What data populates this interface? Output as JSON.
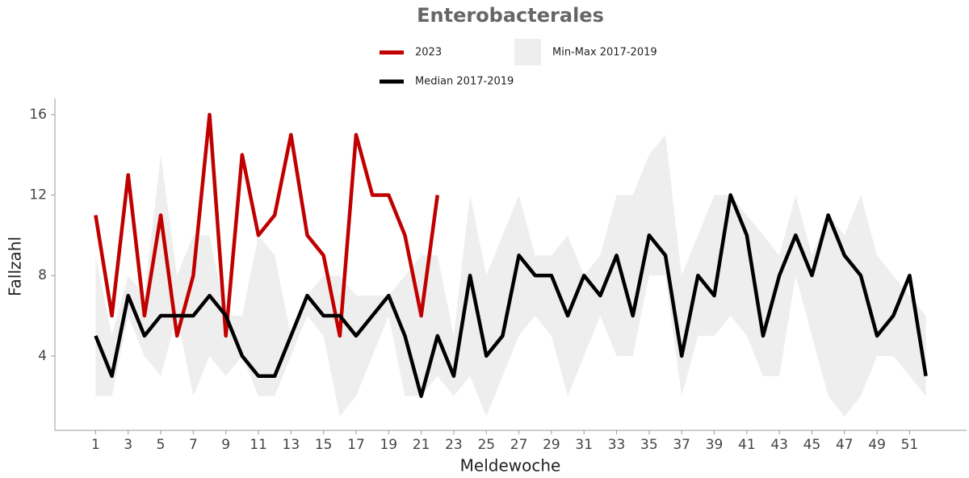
{
  "chart_data": {
    "type": "line",
    "title": "Enterobacterales",
    "x_label": "Meldewoche",
    "y_label": "Fallzahl",
    "x": [
      1,
      2,
      3,
      4,
      5,
      6,
      7,
      8,
      9,
      10,
      11,
      12,
      13,
      14,
      15,
      16,
      17,
      18,
      19,
      20,
      21,
      22,
      23,
      24,
      25,
      26,
      27,
      28,
      29,
      30,
      31,
      32,
      33,
      34,
      35,
      36,
      37,
      38,
      39,
      40,
      41,
      42,
      43,
      44,
      45,
      46,
      47,
      48,
      49,
      50,
      51,
      52
    ],
    "xlim": [
      -1.5,
      54.5
    ],
    "xticks": [
      1,
      3,
      5,
      7,
      9,
      11,
      13,
      15,
      17,
      19,
      21,
      23,
      25,
      27,
      29,
      31,
      33,
      35,
      37,
      39,
      41,
      43,
      45,
      47,
      49,
      51
    ],
    "ylim": [
      0.3,
      16.8
    ],
    "yticks": [
      4,
      8,
      12,
      16
    ],
    "band": {
      "name": "Min-Max 2017-2019",
      "color": "#eeeeee",
      "upper": [
        9,
        5,
        8,
        7,
        14,
        8,
        10,
        10,
        6,
        6,
        10,
        9,
        5,
        7,
        8,
        8,
        7,
        7,
        7,
        8,
        9,
        9,
        5,
        12,
        8,
        10,
        12,
        9,
        9,
        10,
        8,
        9,
        12,
        12,
        14,
        15,
        8,
        10,
        12,
        12,
        11,
        10,
        9,
        12,
        9,
        11,
        10,
        12,
        9,
        8,
        7,
        6
      ],
      "lower": [
        2,
        2,
        6,
        4,
        3,
        6,
        2,
        4,
        3,
        4,
        2,
        2,
        4,
        6,
        5,
        1,
        2,
        4,
        6,
        2,
        2,
        3,
        2,
        3,
        1,
        3,
        5,
        6,
        5,
        2,
        4,
        6,
        4,
        4,
        8,
        8,
        2,
        5,
        5,
        6,
        5,
        3,
        3,
        8,
        5,
        2,
        1,
        2,
        4,
        4,
        3,
        2
      ]
    },
    "series": [
      {
        "name": "2023",
        "color": "#c00000",
        "values": [
          11,
          6,
          13,
          6,
          11,
          5,
          8,
          16,
          5,
          14,
          10,
          11,
          15,
          10,
          9,
          5,
          15,
          12,
          12,
          10,
          6,
          12,
          null,
          null,
          null,
          null,
          null,
          null,
          null,
          null,
          null,
          null,
          null,
          null,
          null,
          null,
          null,
          null,
          null,
          null,
          null,
          null,
          null,
          null,
          null,
          null,
          null,
          null,
          null,
          null,
          null,
          null
        ]
      },
      {
        "name": "Median 2017-2019",
        "color": "#000000",
        "values": [
          5,
          3,
          7,
          5,
          6,
          6,
          6,
          7,
          6,
          4,
          3,
          3,
          5,
          7,
          6,
          6,
          5,
          6,
          7,
          5,
          2,
          5,
          3,
          8,
          4,
          5,
          9,
          8,
          8,
          6,
          8,
          7,
          9,
          6,
          10,
          9,
          4,
          8,
          7,
          12,
          10,
          5,
          8,
          10,
          8,
          11,
          9,
          8,
          5,
          6,
          8,
          3
        ]
      }
    ]
  }
}
